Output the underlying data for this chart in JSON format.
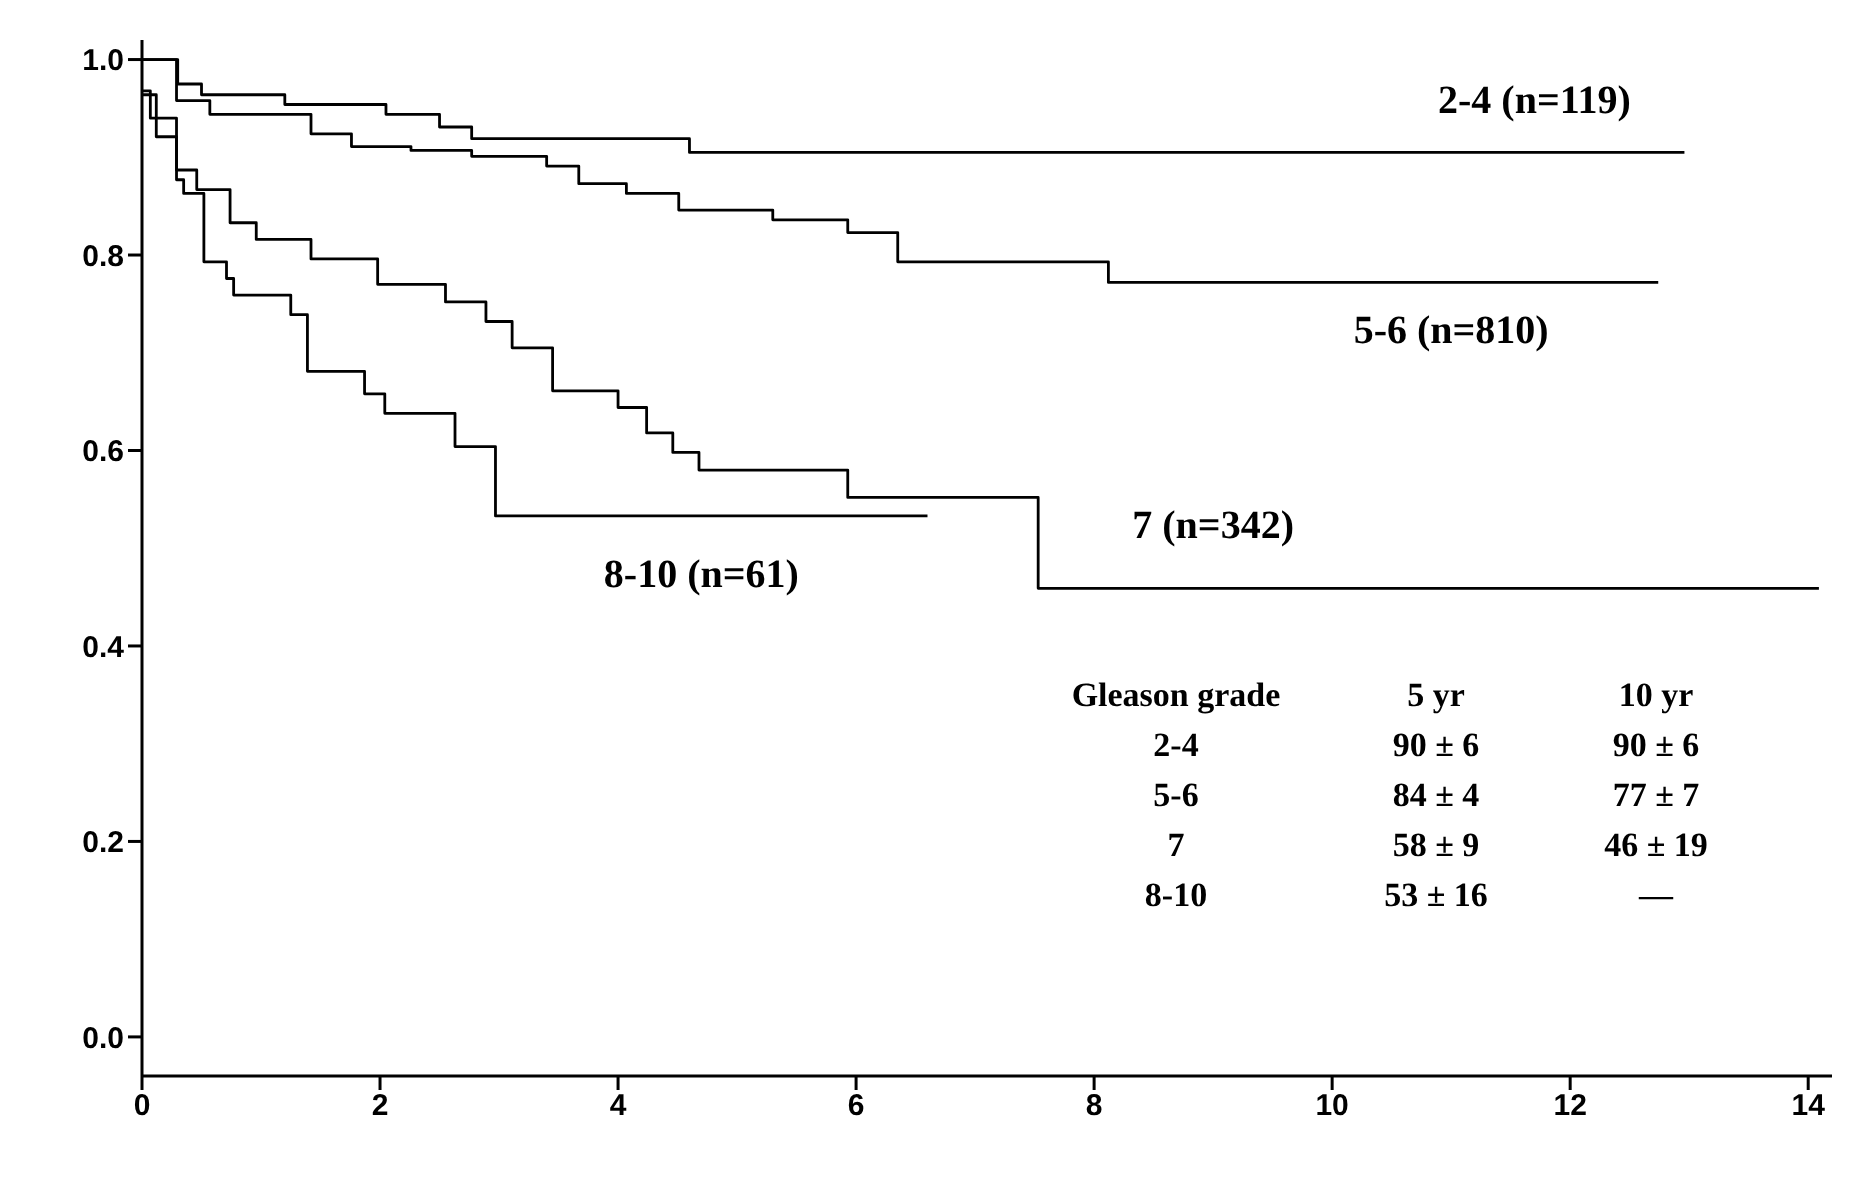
{
  "chart_data": {
    "type": "step",
    "xlim": [
      0,
      14.2
    ],
    "ylim": [
      -0.04,
      1.02
    ],
    "xticks": [
      0,
      2,
      4,
      6,
      8,
      10,
      12,
      14
    ],
    "yticks": [
      {
        "value": 0,
        "label": "0.0"
      },
      0.2,
      0.4,
      0.6,
      0.8,
      {
        "value": 1,
        "label": "1.0"
      }
    ],
    "grid": false,
    "legend": false,
    "series": [
      {
        "name": "2-4  (n=119)",
        "color": "#000000",
        "x": [
          0,
          0.3,
          0.5,
          1.2,
          2.05,
          2.5,
          2.77,
          4.6,
          12.96
        ],
        "values": [
          1,
          0.975,
          0.964,
          0.954,
          0.944,
          0.931,
          0.919,
          0.905,
          0.905
        ]
      },
      {
        "name": "5-6  (n=810)",
        "color": "#000000",
        "x": [
          0,
          0.29,
          0.57,
          1.42,
          1.76,
          2.26,
          2.77,
          3.4,
          3.67,
          4.07,
          4.51,
          5.3,
          5.93,
          6.35,
          8.12,
          12.74
        ],
        "values": [
          1,
          0.958,
          0.944,
          0.924,
          0.911,
          0.907,
          0.901,
          0.891,
          0.873,
          0.863,
          0.846,
          0.836,
          0.823,
          0.793,
          0.772,
          0.772
        ]
      },
      {
        "name": "7  (n=342)",
        "color": "#000000",
        "x": [
          0,
          0.07,
          0.29,
          0.46,
          0.74,
          0.96,
          1.42,
          1.98,
          2.55,
          2.89,
          3.11,
          3.45,
          4.0,
          4.24,
          4.46,
          4.68,
          5.93,
          7.53,
          14.09
        ],
        "values": [
          0.968,
          0.94,
          0.887,
          0.867,
          0.833,
          0.816,
          0.796,
          0.77,
          0.752,
          0.732,
          0.705,
          0.661,
          0.644,
          0.618,
          0.598,
          0.58,
          0.552,
          0.459,
          0.459
        ]
      },
      {
        "name": "8-10  (n=61)",
        "color": "#000000",
        "x": [
          0,
          0.12,
          0.29,
          0.35,
          0.52,
          0.71,
          0.77,
          1.25,
          1.39,
          1.87,
          2.04,
          2.63,
          2.97,
          6.6
        ],
        "values": [
          0.964,
          0.921,
          0.877,
          0.863,
          0.793,
          0.776,
          0.759,
          0.739,
          0.681,
          0.658,
          0.638,
          0.604,
          0.533,
          0.533
        ]
      }
    ],
    "annotations": [
      "Gleason grade",
      "5 yr",
      "10 yr",
      "2-4",
      "90 ± 6",
      "90 ± 6",
      "5-6",
      "84 ± 4",
      "77 ± 7",
      "7",
      "58 ± 9",
      "46 ± 19",
      "8-10",
      "53 ± 16",
      "—"
    ]
  }
}
